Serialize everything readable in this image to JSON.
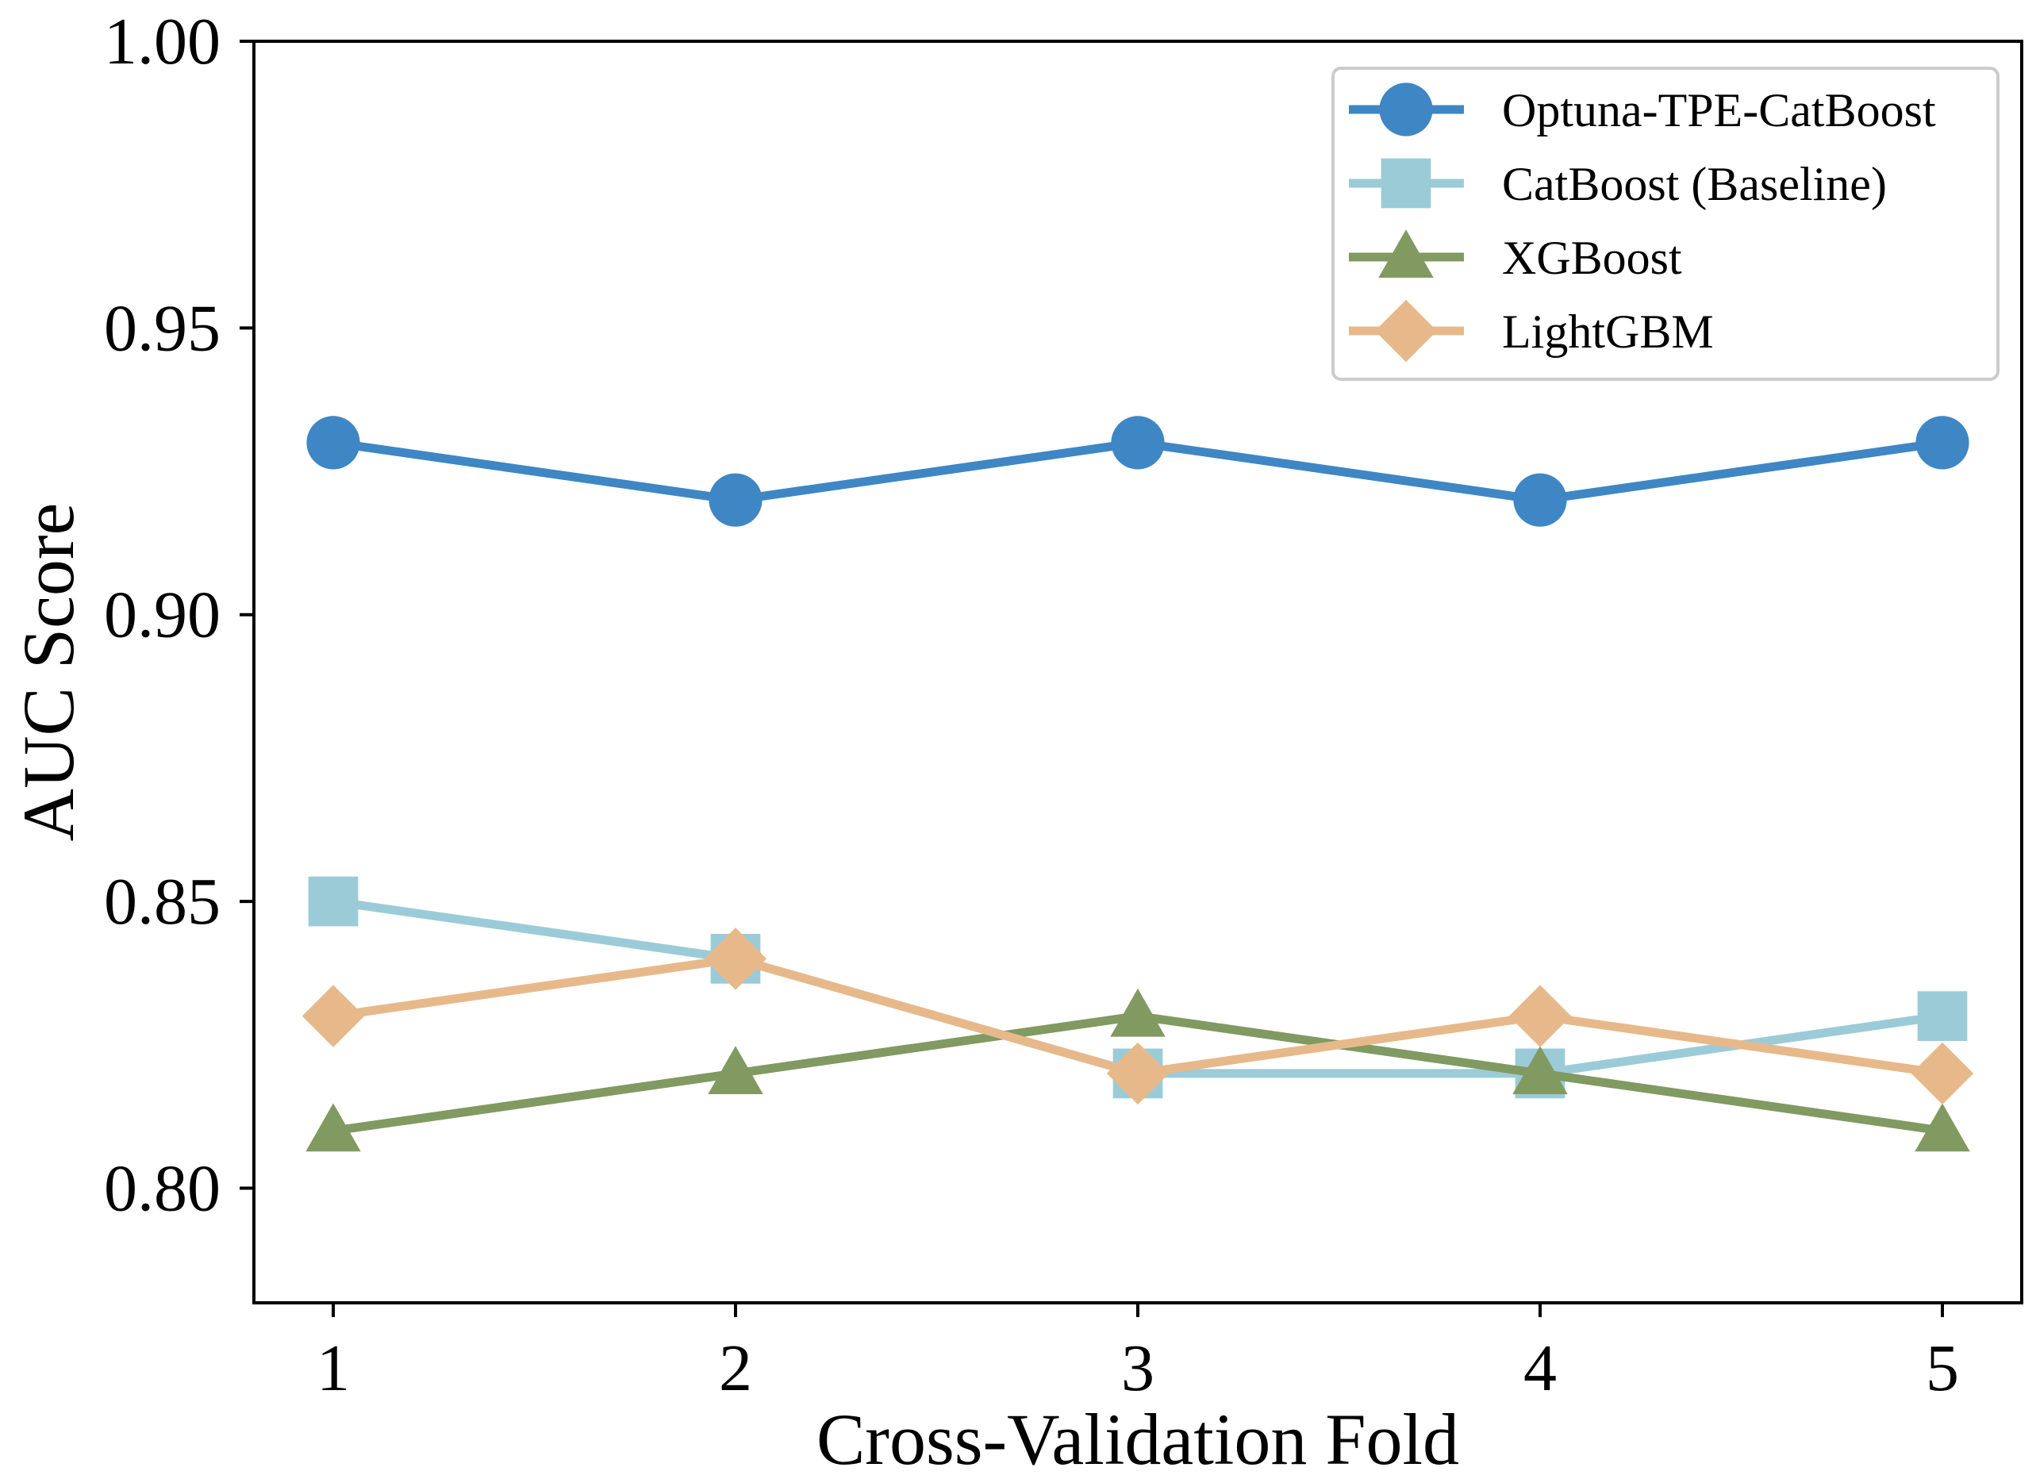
{
  "chart_data": {
    "type": "line",
    "xlabel": "Cross-Validation Fold",
    "ylabel": "AUC Score",
    "x": [
      1,
      2,
      3,
      4,
      5
    ],
    "xticks": [
      "1",
      "2",
      "3",
      "4",
      "5"
    ],
    "ylim": [
      0.78,
      1.0
    ],
    "yticks": [
      "0.80",
      "0.85",
      "0.90",
      "0.95",
      "1.00"
    ],
    "grid": false,
    "legend_position": "top-right",
    "series": [
      {
        "name": "Optuna-TPE-CatBoost",
        "values": [
          0.93,
          0.92,
          0.93,
          0.92,
          0.93
        ],
        "color": "#3f86c4",
        "marker": "circle"
      },
      {
        "name": "CatBoost (Baseline)",
        "values": [
          0.85,
          0.84,
          0.82,
          0.82,
          0.83
        ],
        "color": "#9ccbd8",
        "marker": "square"
      },
      {
        "name": "XGBoost",
        "values": [
          0.81,
          0.82,
          0.83,
          0.82,
          0.81
        ],
        "color": "#809a61",
        "marker": "triangle"
      },
      {
        "name": "LightGBM",
        "values": [
          0.83,
          0.84,
          0.82,
          0.83,
          0.82
        ],
        "color": "#e7b98a",
        "marker": "diamond"
      }
    ]
  }
}
